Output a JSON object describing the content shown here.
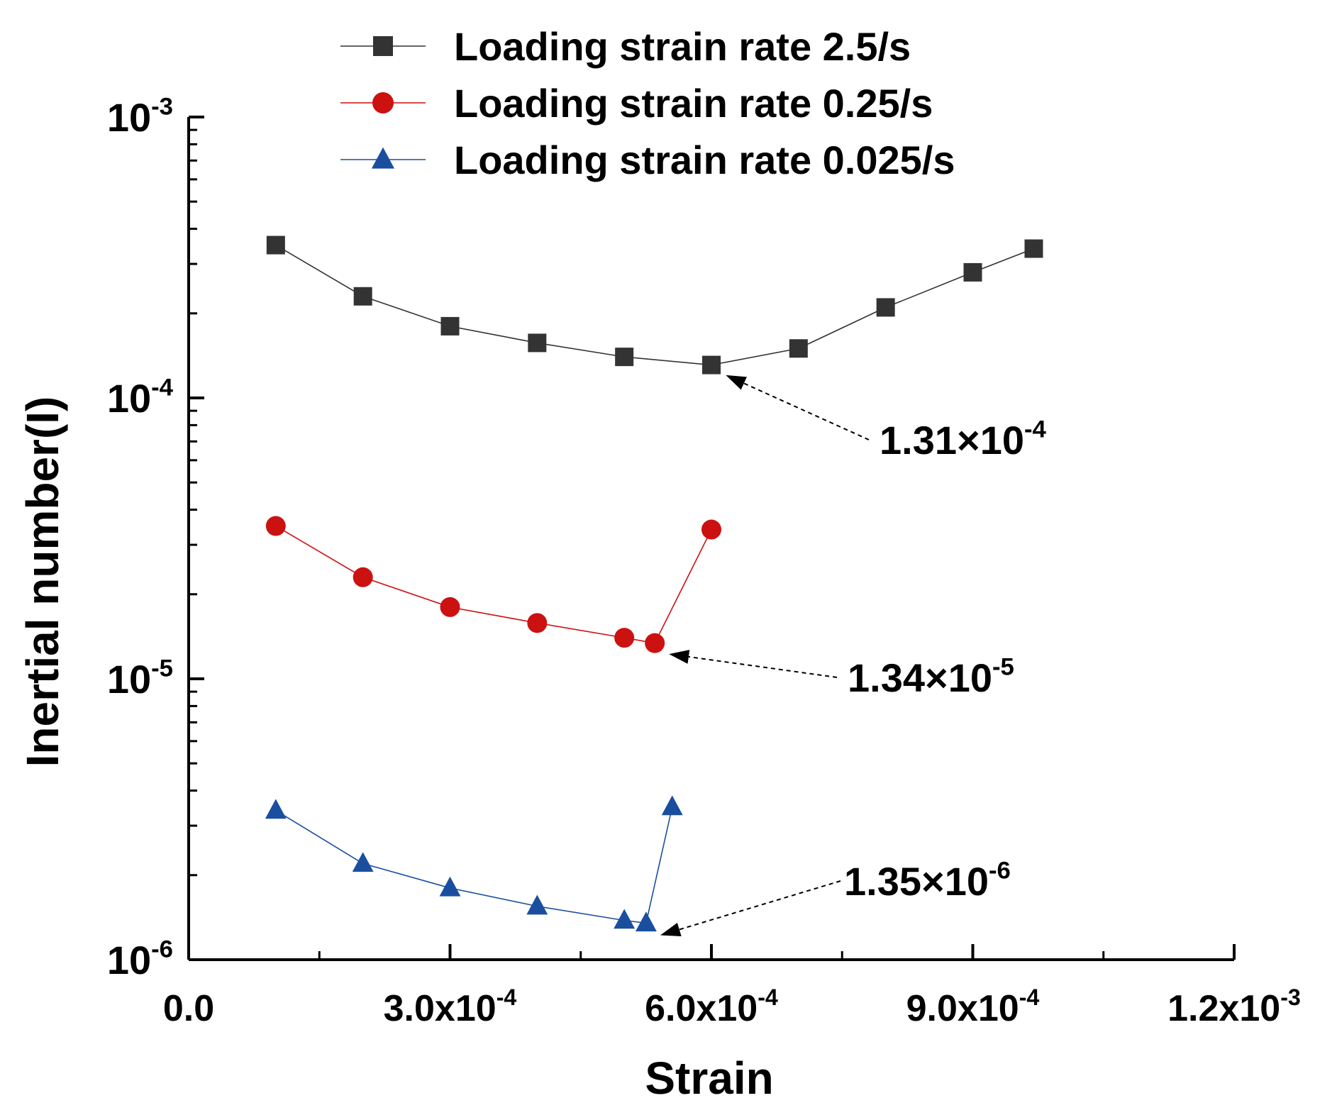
{
  "chart_data": {
    "type": "line",
    "xlabel": "Strain",
    "ylabel": "Inertial number(I)",
    "xlim": [
      0,
      0.0012
    ],
    "ylim": [
      1e-06,
      0.001
    ],
    "yscale": "log",
    "grid": false,
    "legend_position": "top",
    "x_ticks": [
      {
        "value": 0,
        "mantissa": "0.0",
        "exp": ""
      },
      {
        "value": 0.0003,
        "mantissa": "3.0x10",
        "exp": "-4"
      },
      {
        "value": 0.0006,
        "mantissa": "6.0x10",
        "exp": "-4"
      },
      {
        "value": 0.0009,
        "mantissa": "9.0x10",
        "exp": "-4"
      },
      {
        "value": 0.0012,
        "mantissa": "1.2x10",
        "exp": "-3"
      }
    ],
    "y_ticks": [
      {
        "value": 0.001,
        "mantissa": "10",
        "exp": "-3"
      },
      {
        "value": 0.0001,
        "mantissa": "10",
        "exp": "-4"
      },
      {
        "value": 1e-05,
        "mantissa": "10",
        "exp": "-5"
      },
      {
        "value": 1e-06,
        "mantissa": "10",
        "exp": "-6"
      }
    ],
    "series": [
      {
        "name": "Loading strain rate 2.5/s",
        "marker": "square",
        "color": "#333333",
        "x": [
          0.0001,
          0.0002,
          0.0003,
          0.0004,
          0.0005,
          0.0006,
          0.0007,
          0.0008,
          0.0009,
          0.00097
        ],
        "y": [
          0.00035,
          0.00023,
          0.00018,
          0.000157,
          0.00014,
          0.000131,
          0.00015,
          0.00021,
          0.00028,
          0.00034
        ]
      },
      {
        "name": "Loading strain rate 0.25/s",
        "marker": "circle",
        "color": "#cc1111",
        "x": [
          0.0001,
          0.0002,
          0.0003,
          0.0004,
          0.0005,
          0.000535,
          0.0006
        ],
        "y": [
          3.5e-05,
          2.3e-05,
          1.8e-05,
          1.58e-05,
          1.4e-05,
          1.34e-05,
          3.4e-05
        ]
      },
      {
        "name": "Loading strain rate 0.025/s",
        "marker": "triangle",
        "color": "#1a4fa0",
        "x": [
          0.0001,
          0.0002,
          0.0003,
          0.0004,
          0.0005,
          0.000525,
          0.000555
        ],
        "y": [
          3.4e-06,
          2.2e-06,
          1.8e-06,
          1.55e-06,
          1.38e-06,
          1.35e-06,
          3.5e-06
        ]
      }
    ],
    "annotations": [
      {
        "mantissa": "1.31×10",
        "exp": "-4",
        "x": 0.0006,
        "y": 0.000131
      },
      {
        "mantissa": "1.34×10",
        "exp": "-5",
        "x": 0.000535,
        "y": 1.34e-05
      },
      {
        "mantissa": "1.35×10",
        "exp": "-6",
        "x": 0.000525,
        "y": 1.35e-06
      }
    ]
  }
}
